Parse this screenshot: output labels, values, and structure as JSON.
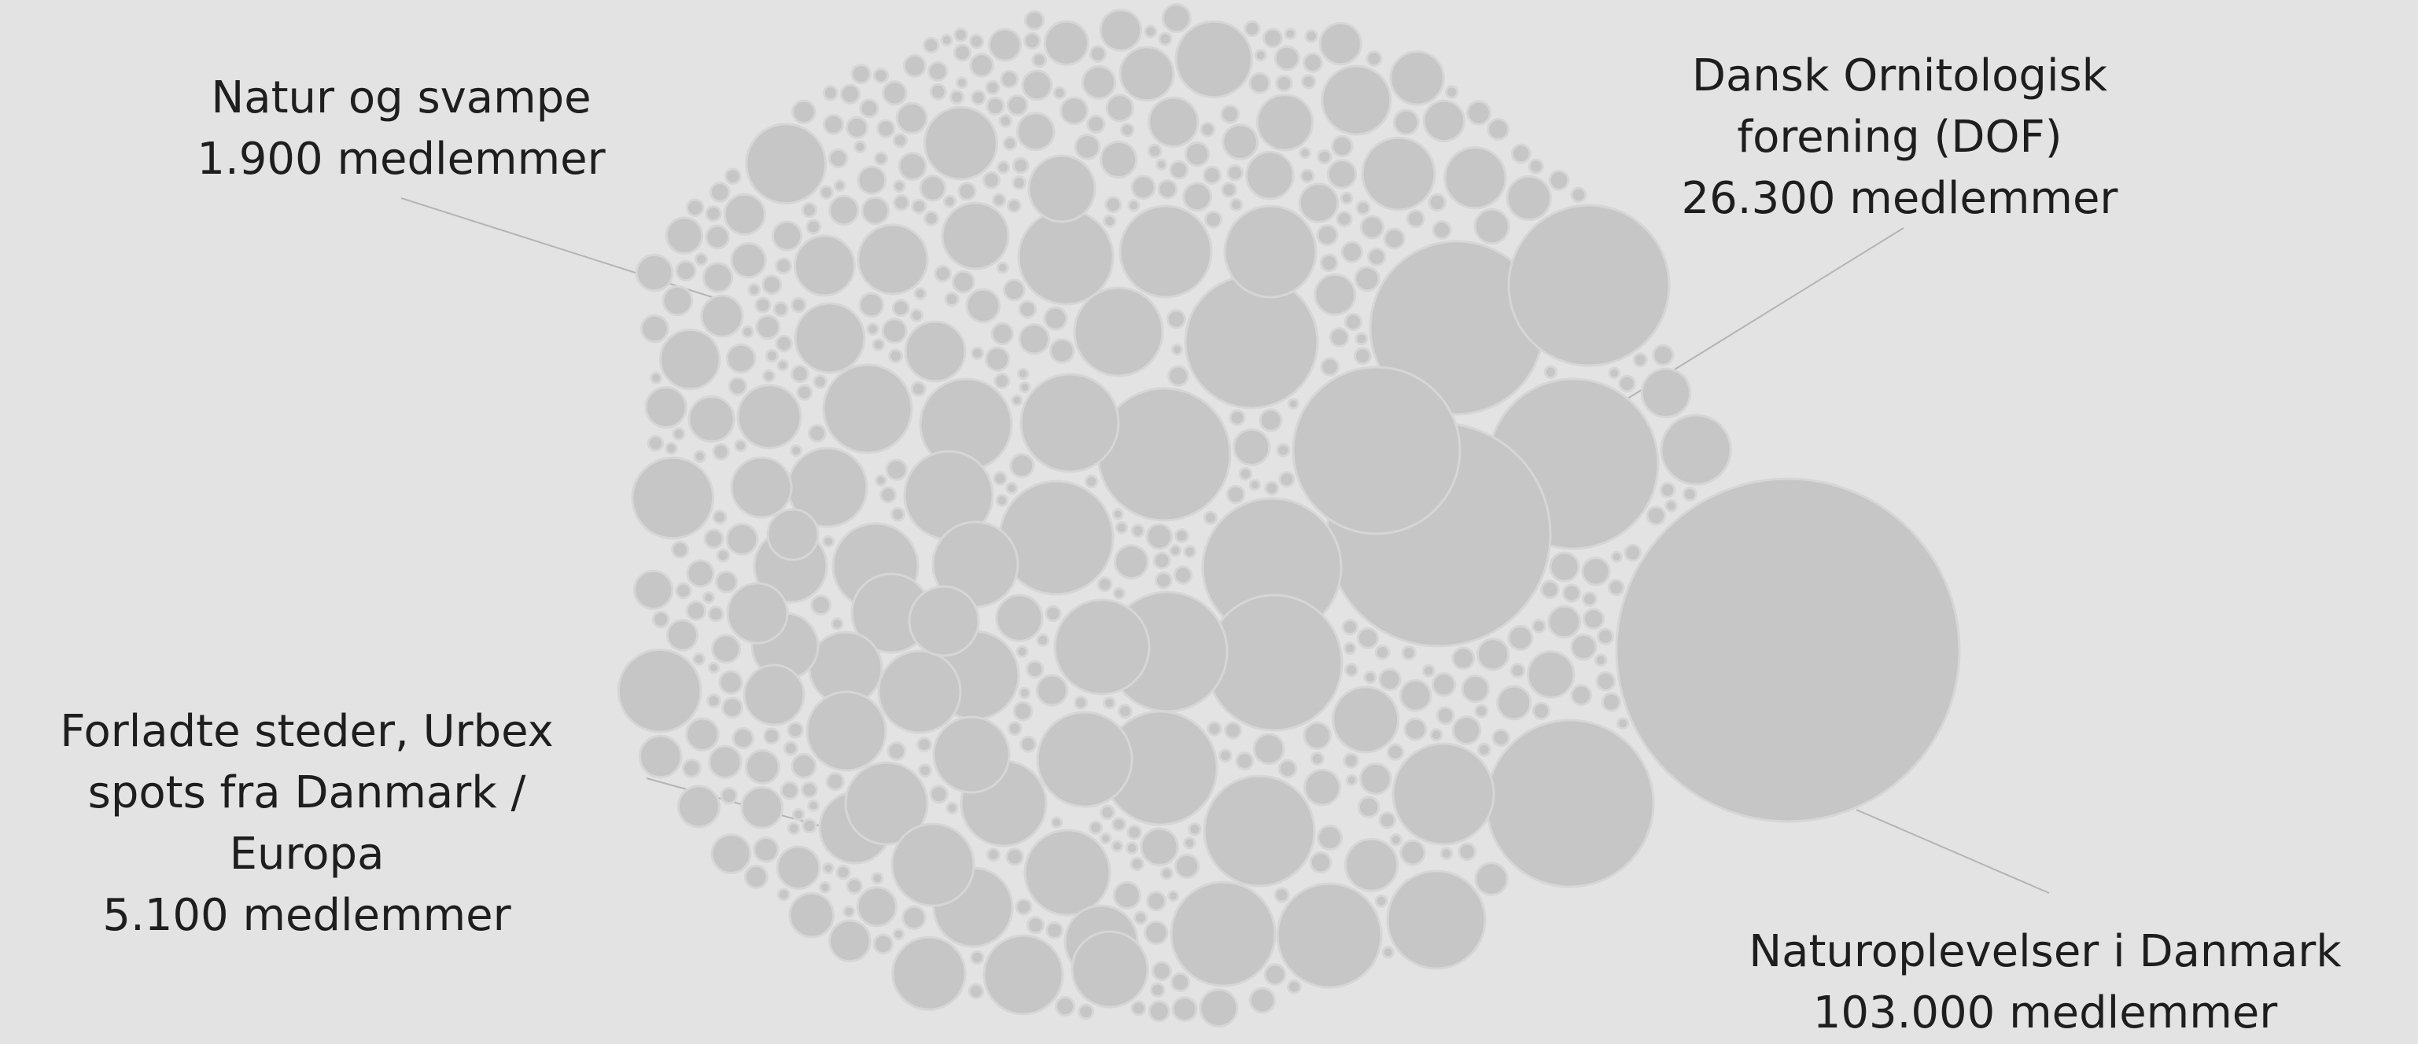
{
  "colors": {
    "background": "#e3e3e3",
    "bubble": "#c6c6c6",
    "bubble_stroke": "#d6d6d6",
    "leader": "#b4b4b4",
    "text": "#1e1e1e"
  },
  "chart_data": {
    "type": "bubble",
    "unit": "medlemmer",
    "highlighted": [
      {
        "name": "Natur og svampe",
        "count_label": "1.900 medlemmer",
        "members": 1900
      },
      {
        "name": "Dansk Ornitologisk forening (DOF)",
        "name_lines": [
          "Dansk Ornitologisk",
          "forening (DOF)"
        ],
        "count_label": "26.300 medlemmer",
        "members": 26300
      },
      {
        "name": "Forladte steder, Urbex spots fra Danmark / Europa",
        "name_lines": [
          "Forladte steder, Urbex",
          "spots fra Danmark /",
          "Europa"
        ],
        "count_label": "5.100 medlemmer",
        "members": 5100
      },
      {
        "name": "Naturoplevelser i Danmark",
        "count_label": "103.000 medlemmer",
        "members": 103000
      }
    ]
  }
}
